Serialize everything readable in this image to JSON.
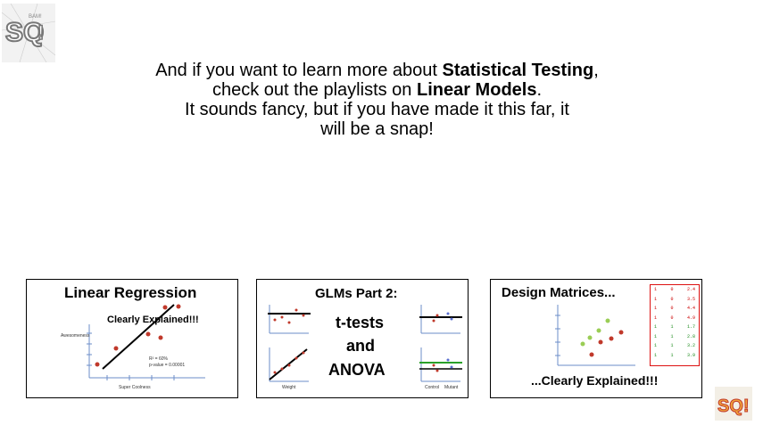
{
  "headline": {
    "p1": "And if you want to learn more about ",
    "b1": "Statistical Testing",
    "p2": ", check out the playlists on ",
    "b2": "Linear Models",
    "p3": ".",
    "line3": "It sounds fancy, but if you have made it this far, it",
    "line4": "will be a snap!"
  },
  "logo": {
    "text": "SQ!",
    "sub": "Double BAM!!"
  },
  "cards": [
    {
      "title": "Linear Regression",
      "subtitle": "Clearly Explained!!!",
      "y_label": "Awesomeness",
      "x_label": "Super Coolness",
      "stat1": "R² = 60%",
      "stat2": "p-value = 0.00001"
    },
    {
      "title": "GLMs Part 2:",
      "line1": "t-tests",
      "line2": "and",
      "line3": "ANOVA",
      "x_label_left": "Weight",
      "x_label_right1": "Control",
      "x_label_right2": "Mutant"
    },
    {
      "title": "Design Matrices...",
      "subtitle": "...Clearly Explained!!!",
      "matrix": [
        [
          "1",
          "0",
          "2.4"
        ],
        [
          "1",
          "0",
          "3.5"
        ],
        [
          "1",
          "0",
          "4.4"
        ],
        [
          "1",
          "0",
          "4.9"
        ],
        [
          "1",
          "1",
          "1.7"
        ],
        [
          "1",
          "1",
          "2.8"
        ],
        [
          "1",
          "1",
          "3.2"
        ],
        [
          "1",
          "1",
          "3.9"
        ]
      ]
    }
  ],
  "colors": {
    "red_point": "#c0392b",
    "green_point": "#9acd55",
    "green_line": "#2aa02a",
    "matrix_red": "#cc0000"
  }
}
